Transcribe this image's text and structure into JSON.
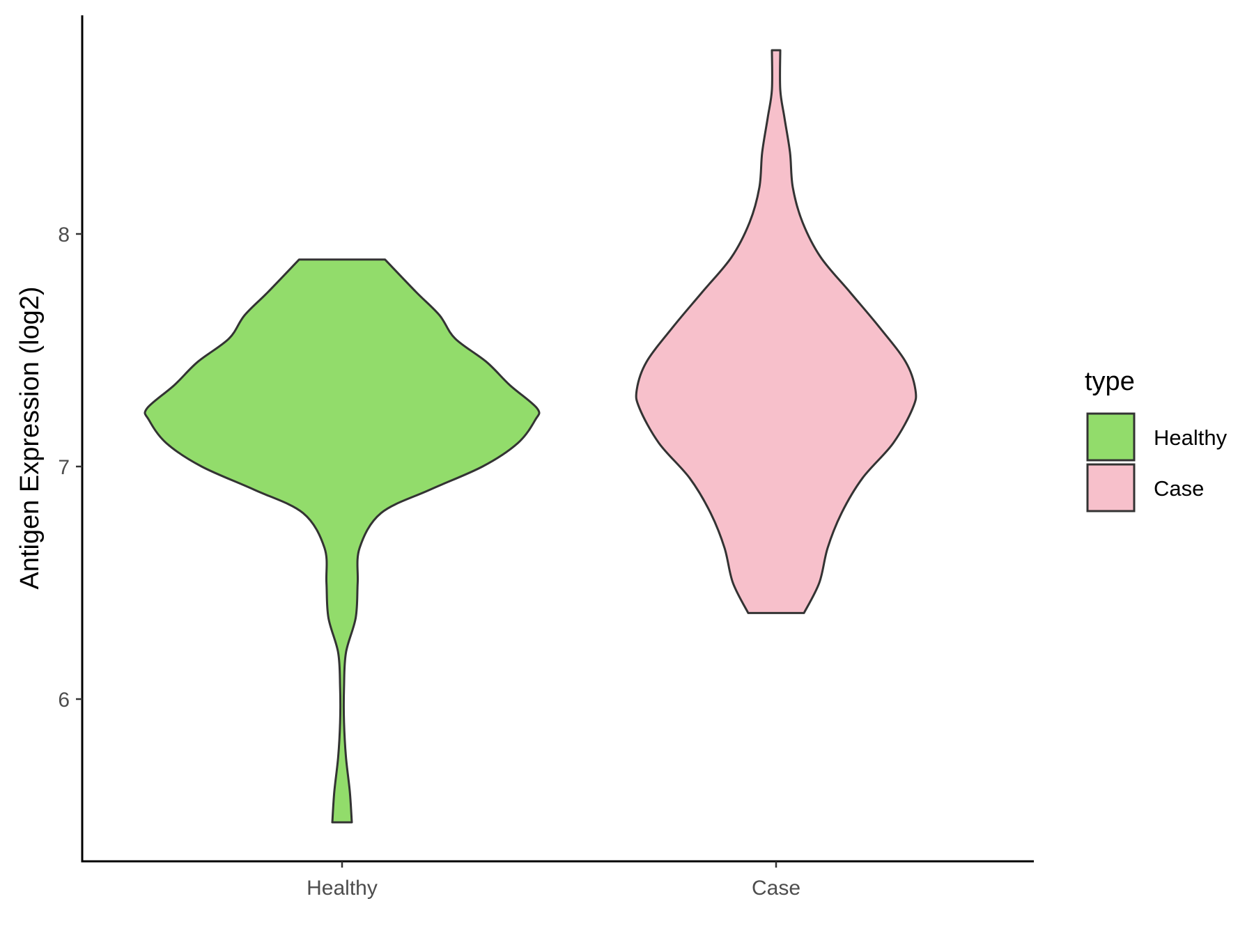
{
  "chart_data": {
    "type": "violin",
    "title": "",
    "xlabel": "",
    "ylabel": "Antigen Expression (log2)",
    "categories": [
      "Healthy",
      "Case"
    ],
    "y_ticks": [
      6,
      7,
      8
    ],
    "ylim": [
      5.38,
      8.93
    ],
    "grid": false,
    "legend": {
      "title": "type",
      "position": "right",
      "entries": [
        {
          "label": "Healthy",
          "color": "#92dc6b"
        },
        {
          "label": "Case",
          "color": "#f7c0cb"
        }
      ]
    },
    "series": [
      {
        "category": "Healthy",
        "color": "#92dc6b",
        "min": 5.47,
        "max": 7.89,
        "density_profile": [
          [
            5.47,
            0.05
          ],
          [
            5.6,
            0.04
          ],
          [
            5.75,
            0.02
          ],
          [
            5.9,
            0.01
          ],
          [
            6.05,
            0.01
          ],
          [
            6.2,
            0.02
          ],
          [
            6.35,
            0.07
          ],
          [
            6.5,
            0.08
          ],
          [
            6.65,
            0.09
          ],
          [
            6.8,
            0.2
          ],
          [
            6.9,
            0.45
          ],
          [
            7.0,
            0.72
          ],
          [
            7.1,
            0.9
          ],
          [
            7.2,
            0.99
          ],
          [
            7.25,
            1.0
          ],
          [
            7.35,
            0.86
          ],
          [
            7.45,
            0.74
          ],
          [
            7.55,
            0.58
          ],
          [
            7.65,
            0.5
          ],
          [
            7.75,
            0.38
          ],
          [
            7.89,
            0.22
          ]
        ]
      },
      {
        "category": "Case",
        "color": "#f7c0cb",
        "min": 6.37,
        "max": 8.79,
        "density_profile": [
          [
            6.37,
            0.2
          ],
          [
            6.5,
            0.31
          ],
          [
            6.65,
            0.37
          ],
          [
            6.8,
            0.47
          ],
          [
            6.95,
            0.62
          ],
          [
            7.1,
            0.84
          ],
          [
            7.25,
            0.98
          ],
          [
            7.33,
            1.0
          ],
          [
            7.45,
            0.93
          ],
          [
            7.6,
            0.74
          ],
          [
            7.75,
            0.53
          ],
          [
            7.9,
            0.32
          ],
          [
            8.05,
            0.19
          ],
          [
            8.2,
            0.12
          ],
          [
            8.35,
            0.1
          ],
          [
            8.5,
            0.06
          ],
          [
            8.62,
            0.03
          ],
          [
            8.79,
            0.03
          ]
        ]
      }
    ]
  }
}
